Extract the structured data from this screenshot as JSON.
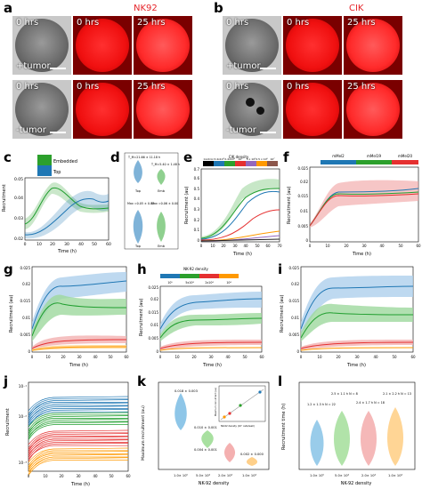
{
  "panels": {
    "a": {
      "label": "a",
      "header": "NK92",
      "t0": "0 hrs",
      "t25": "25 hrs",
      "plus": "+tumor",
      "minus": "-tumor"
    },
    "b": {
      "label": "b",
      "header": "CIK",
      "t0": "0 hrs",
      "t25": "25 hrs",
      "plus": "+tumor",
      "minus": "-tumor"
    },
    "c": {
      "label": "c",
      "legend": [
        "Embedded",
        "Top"
      ],
      "ylabel": "Recruitment",
      "xlabel": "Time (h)",
      "yticks": [
        "0.02",
        "0.03",
        "0.04",
        "0.05"
      ],
      "xticks": [
        "0",
        "10",
        "20",
        "30",
        "40",
        "50",
        "60"
      ]
    },
    "d": {
      "label": "d",
      "ylabel1": "Recruitment time (h)",
      "ylabel2": "Maximum recruitment",
      "stat1": "T_M=21.66 ± 11.18 h",
      "stat2": "T_M=5.40 ± 1.48 h",
      "stat3": "Max =0.05 ± 0.02",
      "stat4": "Max =0.06 ± 0.00",
      "xcats": [
        "Top",
        "Emb"
      ]
    },
    "e": {
      "label": "e",
      "title": "CIK density",
      "legend": [
        "Control",
        "3.4x10³",
        "2.4x10⁴",
        "10⁵",
        "5 x 10⁵",
        "2.5 x 10⁶",
        "10⁷"
      ],
      "ylabel": "Recruitment (au)",
      "xlabel": "Time (h)",
      "yticks": [
        "0",
        "0.1",
        "0.2",
        "0.3",
        "0.4",
        "0.5",
        "0.6",
        "0.7"
      ],
      "xticks": [
        "0",
        "10",
        "20",
        "30",
        "40",
        "50",
        "60",
        "70"
      ]
    },
    "f": {
      "label": "f",
      "legend": [
        "mMel2",
        "mMel19",
        "mMel20"
      ],
      "ylabel": "Recruitment (au)",
      "xlabel": "Time (h)",
      "yticks": [
        "0",
        "0.005",
        "0.01",
        "0.015",
        "0.02",
        "0.025"
      ],
      "xticks": [
        "0",
        "10",
        "20",
        "30",
        "40",
        "50",
        "60"
      ]
    },
    "g": {
      "label": "g",
      "ylabel": "Recruitment (au)",
      "xlabel": "Time (h)",
      "yticks": [
        "0",
        "0.005",
        "0.01",
        "0.015",
        "0.02",
        "0.025"
      ],
      "xticks": [
        "0",
        "10",
        "20",
        "30",
        "40",
        "50",
        "60"
      ]
    },
    "h": {
      "label": "h",
      "title": "NK-92 density",
      "legend": [
        "10⁵",
        "5x10⁴",
        "2x10⁴",
        "10⁴"
      ],
      "ylabel": "Recruitment (au)",
      "xlabel": "Time (h)",
      "yticks": [
        "0",
        "0.005",
        "0.01",
        "0.015",
        "0.02",
        "0.025"
      ],
      "xticks": [
        "0",
        "10",
        "20",
        "30",
        "40",
        "50",
        "60"
      ]
    },
    "i": {
      "label": "i",
      "ylabel": "Recruitment (au)",
      "xlabel": "Time (h)",
      "yticks": [
        "0",
        "0.005",
        "0.01",
        "0.015",
        "0.02",
        "0.025"
      ],
      "xticks": [
        "0",
        "10",
        "20",
        "30",
        "40",
        "50",
        "60"
      ]
    },
    "j": {
      "label": "j",
      "ylabel": "Recruitment",
      "xlabel": "Time (h)",
      "yticks": [
        "10⁻¹",
        "10⁻²",
        "10⁻³"
      ],
      "xticks": [
        "0",
        "10",
        "20",
        "30",
        "40",
        "50",
        "60"
      ]
    },
    "k": {
      "label": "k",
      "ylabel": "Maximum recruitment (au)",
      "xlabel": "NK-92 density",
      "xcats": [
        "1.0× 10⁵",
        "5.0× 10⁴",
        "2.0× 10⁴",
        "1.0× 10⁴"
      ],
      "vals": [
        "0.018 ± 0.003",
        "0.010 ± 0.001",
        "0.004 ± 0.001",
        "0.002 ± 0.000"
      ],
      "inset_ylabel": "Maximum recruitment (au)",
      "inset_xlabel": "NK-92 density (10⁴ cells/well)"
    },
    "l": {
      "label": "l",
      "ylabel": "Recruitment time (h)",
      "xlabel": "NK-92 density",
      "xcats": [
        "1.0× 10⁵",
        "5.0× 10⁴",
        "2.0× 10⁴",
        "1.0× 10⁴"
      ],
      "stats": [
        "1.2 ± 1.3 h\nN = 22",
        "2.5 ± 1.1 h\nN = 8",
        "2.4 ± 1.7 h\nN = 18",
        "2.1 ± 2.2 h\nN = 13"
      ]
    }
  },
  "colors": {
    "green": "#1f9e2e",
    "blue": "#1f77b4",
    "red": "#e53030",
    "orange": "#ff9900",
    "purple": "#9467bd",
    "black": "#222222"
  }
}
